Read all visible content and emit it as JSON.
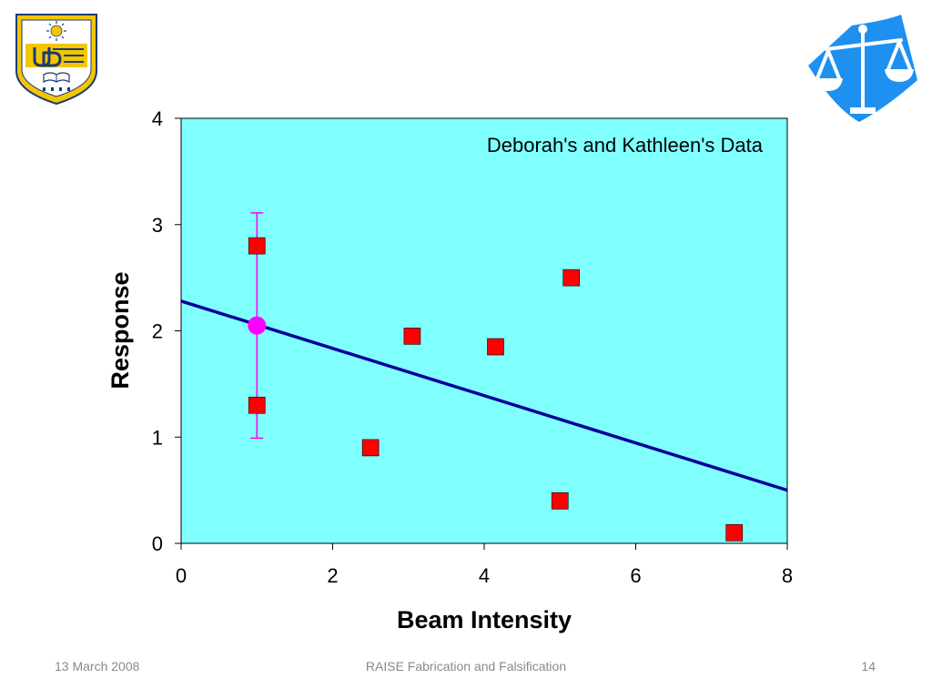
{
  "slide": {
    "footer_date": "13 March 2008",
    "footer_title": "RAISE Fabrication and Falsification",
    "page_number": "14"
  },
  "logos": {
    "left": "University of Delaware logo",
    "right": "scales of justice logo"
  },
  "colors": {
    "plot_background": "#80FFFF",
    "marker": "#FF0000",
    "trend_line": "#000099",
    "mean_marker": "#FF00FF",
    "logo_blue": "#1E90F0",
    "ud_gold": "#F2C600",
    "ud_navy": "#1A3A7A"
  },
  "chart_data": {
    "type": "scatter",
    "title": "Deborah's and Kathleen's Data",
    "xlabel": "Beam Intensity",
    "ylabel": "Response",
    "xlim": [
      0,
      8
    ],
    "ylim": [
      0,
      4
    ],
    "xticks": [
      0,
      2,
      4,
      6,
      8
    ],
    "yticks": [
      0,
      1,
      2,
      3,
      4
    ],
    "grid": false,
    "points": [
      {
        "x": 1,
        "y": 2.8
      },
      {
        "x": 1,
        "y": 1.3
      },
      {
        "x": 2.5,
        "y": 0.9
      },
      {
        "x": 3.05,
        "y": 1.95
      },
      {
        "x": 4.15,
        "y": 1.85
      },
      {
        "x": 5.15,
        "y": 2.5
      },
      {
        "x": 5.0,
        "y": 0.4
      },
      {
        "x": 7.3,
        "y": 0.1
      }
    ],
    "mean_point": {
      "x": 1,
      "y": 2.05
    },
    "error_bar": {
      "x": 1,
      "low": 0.99,
      "high": 3.11
    },
    "trend_line": {
      "x": [
        0,
        8
      ],
      "y": [
        2.28,
        0.5
      ]
    }
  }
}
